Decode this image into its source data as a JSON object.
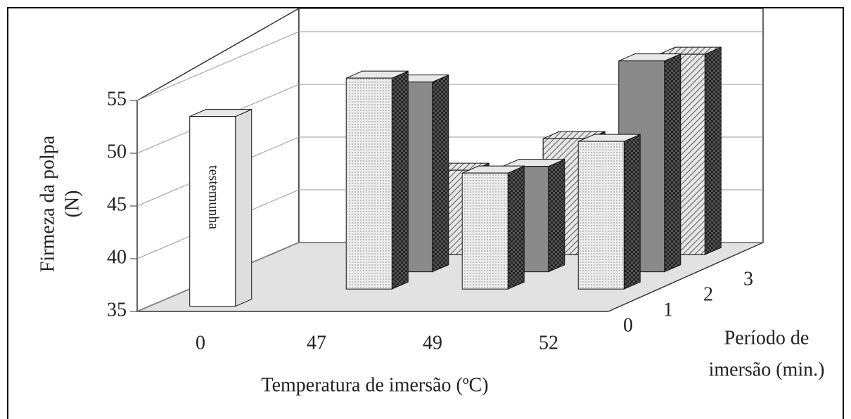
{
  "chart_data": {
    "type": "bar3d",
    "ylabel": [
      "Firmeza da polpa",
      "(N)"
    ],
    "xlabel": "Temperatura de imersão (ºC)",
    "zlabel": [
      "Período de",
      "imersão (min.)"
    ],
    "categories": [
      0,
      47,
      49,
      52
    ],
    "zcategories": [
      0,
      1,
      2,
      3
    ],
    "ylim": [
      35,
      55
    ],
    "yticks": [
      35,
      40,
      45,
      50,
      55
    ],
    "grid": true,
    "series": [
      {
        "color": "#ffffff",
        "values": [
          53,
          null,
          null,
          null
        ]
      },
      {
        "color": "#ededed",
        "values": [
          null,
          55,
          46,
          49
        ]
      },
      {
        "color": "#8a8a8a",
        "values": [
          null,
          53,
          45,
          55
        ]
      },
      {
        "color": "#d2d2d2",
        "values": [
          null,
          43,
          46,
          54
        ]
      }
    ],
    "annotations": [
      {
        "text": "testemunha",
        "series": 0,
        "index": 0
      }
    ]
  }
}
